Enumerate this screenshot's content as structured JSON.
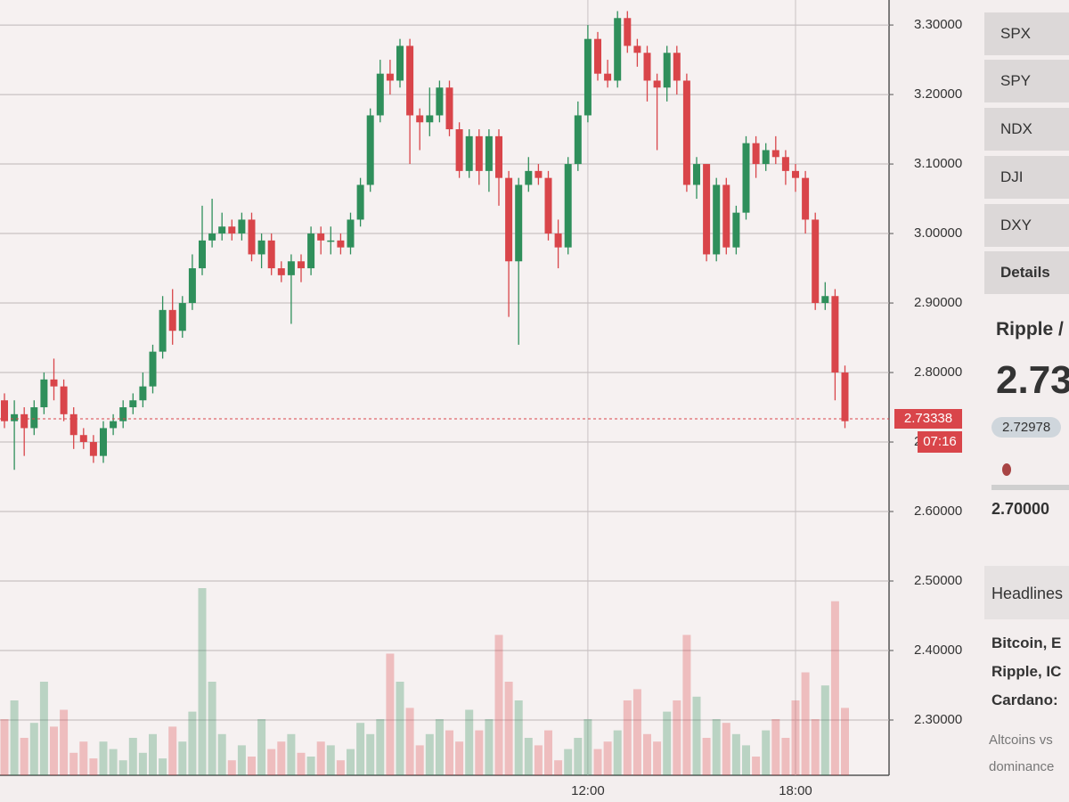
{
  "chart_data": {
    "type": "candlestick",
    "categories": [
      null,
      null,
      null,
      null,
      null,
      null,
      null,
      null,
      null,
      null,
      null,
      null,
      null,
      null,
      null,
      null,
      null,
      null,
      null,
      null,
      null,
      null,
      null,
      null,
      null,
      null,
      null,
      null,
      null,
      null,
      null,
      null,
      null,
      null,
      null,
      null,
      null,
      null,
      null,
      null,
      null,
      null,
      null,
      null,
      null,
      null,
      null,
      null,
      null,
      null,
      null,
      null,
      null,
      null,
      null,
      null,
      null,
      null,
      null,
      "12:00",
      null,
      null,
      null,
      null,
      null,
      null,
      null,
      null,
      null,
      null,
      null,
      null,
      null,
      null,
      null,
      null,
      null,
      null,
      null,
      null,
      "18:00",
      null,
      null,
      null,
      null,
      null
    ],
    "open": [
      2.76,
      2.73,
      2.74,
      2.72,
      2.75,
      2.79,
      2.78,
      2.74,
      2.71,
      2.7,
      2.68,
      2.72,
      2.73,
      2.75,
      2.76,
      2.78,
      2.83,
      2.89,
      2.86,
      2.9,
      2.95,
      2.99,
      3.0,
      3.01,
      3.0,
      3.02,
      2.97,
      2.99,
      2.95,
      2.94,
      2.96,
      2.95,
      3.0,
      2.99,
      2.99,
      2.98,
      3.02,
      3.07,
      3.17,
      3.23,
      3.22,
      3.27,
      3.17,
      3.16,
      3.17,
      3.21,
      3.15,
      3.09,
      3.14,
      3.09,
      3.14,
      3.08,
      2.96,
      3.07,
      3.09,
      3.08,
      3.0,
      2.98,
      3.1,
      3.17,
      3.28,
      3.23,
      3.22,
      3.31,
      3.27,
      3.26,
      3.22,
      3.21,
      3.26,
      3.22,
      3.07,
      3.1,
      2.97,
      3.07,
      2.98,
      3.03,
      3.13,
      3.1,
      3.12,
      3.11,
      3.09,
      3.08,
      3.02,
      2.9,
      2.91,
      2.8
    ],
    "high": [
      2.77,
      2.76,
      2.75,
      2.76,
      2.8,
      2.82,
      2.79,
      2.75,
      2.72,
      2.71,
      2.73,
      2.74,
      2.76,
      2.77,
      2.8,
      2.84,
      2.91,
      2.92,
      2.91,
      2.97,
      3.04,
      3.05,
      3.03,
      3.02,
      3.03,
      3.03,
      3.0,
      3.0,
      2.96,
      2.97,
      2.97,
      3.01,
      3.01,
      3.01,
      3.0,
      3.03,
      3.08,
      3.18,
      3.25,
      3.25,
      3.28,
      3.28,
      3.18,
      3.21,
      3.22,
      3.22,
      3.16,
      3.15,
      3.15,
      3.15,
      3.15,
      3.09,
      3.08,
      3.11,
      3.1,
      3.09,
      3.02,
      3.11,
      3.19,
      3.3,
      3.29,
      3.25,
      3.32,
      3.32,
      3.28,
      3.27,
      3.23,
      3.27,
      3.27,
      3.23,
      3.11,
      3.1,
      3.08,
      3.08,
      3.04,
      3.14,
      3.14,
      3.13,
      3.14,
      3.12,
      3.1,
      3.09,
      3.03,
      2.93,
      2.92,
      2.81
    ],
    "low": [
      2.72,
      2.66,
      2.68,
      2.71,
      2.74,
      2.76,
      2.73,
      2.69,
      2.69,
      2.67,
      2.67,
      2.71,
      2.72,
      2.74,
      2.75,
      2.77,
      2.82,
      2.84,
      2.85,
      2.89,
      2.94,
      2.98,
      2.99,
      2.99,
      2.99,
      2.96,
      2.95,
      2.94,
      2.93,
      2.87,
      2.93,
      2.94,
      2.97,
      2.97,
      2.97,
      2.97,
      3.01,
      3.06,
      3.16,
      3.2,
      3.21,
      3.1,
      3.12,
      3.14,
      3.16,
      3.14,
      3.08,
      3.08,
      3.07,
      3.06,
      3.04,
      2.88,
      2.84,
      3.06,
      3.07,
      2.99,
      2.95,
      2.97,
      3.09,
      3.16,
      3.22,
      3.21,
      3.21,
      3.26,
      3.24,
      3.19,
      3.12,
      3.19,
      3.2,
      3.06,
      3.05,
      2.96,
      2.96,
      2.97,
      2.97,
      3.02,
      3.08,
      3.09,
      3.1,
      3.07,
      3.06,
      3.0,
      2.89,
      2.89,
      2.76,
      2.72
    ],
    "close": [
      2.73,
      2.74,
      2.72,
      2.75,
      2.79,
      2.78,
      2.74,
      2.71,
      2.7,
      2.68,
      2.72,
      2.73,
      2.75,
      2.76,
      2.78,
      2.83,
      2.89,
      2.86,
      2.9,
      2.95,
      2.99,
      3.0,
      3.01,
      3.0,
      3.02,
      2.97,
      2.99,
      2.95,
      2.94,
      2.96,
      2.95,
      3.0,
      2.99,
      2.99,
      2.98,
      3.02,
      3.07,
      3.17,
      3.23,
      3.22,
      3.27,
      3.17,
      3.16,
      3.17,
      3.21,
      3.15,
      3.09,
      3.14,
      3.09,
      3.14,
      3.08,
      2.96,
      3.07,
      3.09,
      3.08,
      3.0,
      2.98,
      3.1,
      3.17,
      3.28,
      3.23,
      3.22,
      3.31,
      3.27,
      3.26,
      3.22,
      3.21,
      3.26,
      3.22,
      3.07,
      3.1,
      2.97,
      3.07,
      2.98,
      3.03,
      3.13,
      3.1,
      3.12,
      3.11,
      3.09,
      3.08,
      3.02,
      2.9,
      2.91,
      2.8,
      2.73
    ],
    "volume": [
      30,
      40,
      20,
      28,
      50,
      26,
      35,
      12,
      18,
      9,
      18,
      14,
      8,
      20,
      12,
      22,
      9,
      26,
      18,
      34,
      100,
      50,
      22,
      8,
      16,
      10,
      30,
      14,
      18,
      22,
      12,
      10,
      18,
      16,
      8,
      14,
      28,
      22,
      30,
      65,
      50,
      36,
      16,
      22,
      30,
      24,
      18,
      35,
      24,
      30,
      75,
      50,
      40,
      20,
      16,
      24,
      8,
      14,
      20,
      30,
      14,
      18,
      24,
      40,
      46,
      22,
      18,
      34,
      40,
      75,
      42,
      20,
      30,
      28,
      22,
      16,
      10,
      24,
      30,
      20,
      40,
      55,
      30,
      48,
      93,
      36
    ],
    "colors": {
      "up": "#2f8f5b",
      "down": "#d9454a"
    },
    "ylim": [
      2.2205,
      3.336
    ],
    "yticks": [
      {
        "value": 3.3,
        "label": "3.30000"
      },
      {
        "value": 3.2,
        "label": "3.20000"
      },
      {
        "value": 3.1,
        "label": "3.10000"
      },
      {
        "value": 3.0,
        "label": "3.00000"
      },
      {
        "value": 2.9,
        "label": "2.90000"
      },
      {
        "value": 2.8,
        "label": "2.80000"
      },
      {
        "value": 2.7,
        "label": "2.70000"
      },
      {
        "value": 2.6,
        "label": "2.60000"
      },
      {
        "value": 2.5,
        "label": "2.50000"
      },
      {
        "value": 2.4,
        "label": "2.40000"
      },
      {
        "value": 2.3,
        "label": "2.30000"
      }
    ],
    "grid": true,
    "last_price": 2.73338,
    "countdown": "07:16"
  },
  "sidebar": {
    "buttons": [
      "SPX",
      "SPY",
      "NDX",
      "DJI",
      "DXY",
      "Details"
    ],
    "symbol": "Ripple /",
    "price": "2.73",
    "bid": "2.72978",
    "range_low": "2.70000",
    "headlines_title": "Headlines",
    "headlines": [
      "Bitcoin, E",
      "Ripple, IC",
      "Cardano:"
    ],
    "teaser": [
      "Altcoins vs",
      "dominance"
    ]
  }
}
